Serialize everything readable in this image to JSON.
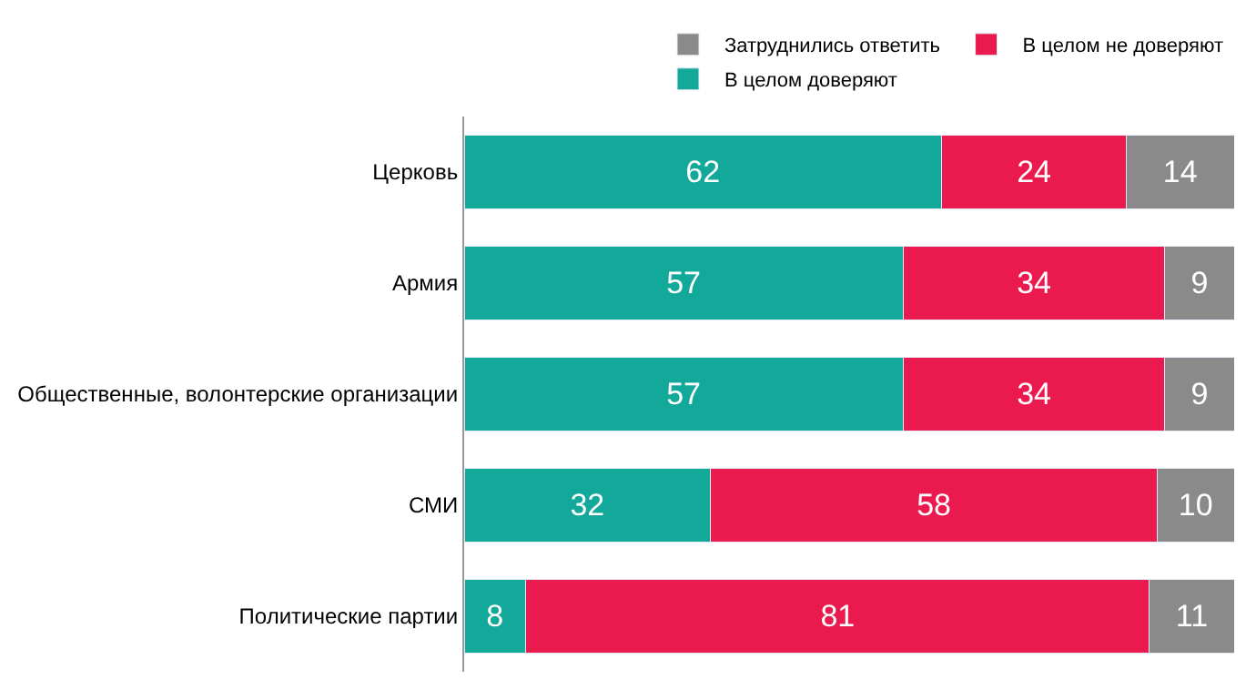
{
  "chart_data": {
    "type": "bar",
    "orientation": "horizontal",
    "stacked": true,
    "data_labels": true,
    "legend": "top right",
    "tick_labels": "y",
    "xlim": [
      0,
      100
    ],
    "categories": [
      "Церковь",
      "Армия",
      "Общественные, волонтерские организации",
      "СМИ",
      "Политические партии"
    ],
    "series": [
      {
        "name": "В целом доверяют",
        "color": "#12a89a",
        "values": [
          62,
          57,
          57,
          32,
          8
        ]
      },
      {
        "name": "В целом не доверяют",
        "color": "#ea1a4f",
        "values": [
          24,
          34,
          34,
          58,
          81
        ]
      },
      {
        "name": "Затруднились ответить",
        "color": "#8a8a8a",
        "values": [
          14,
          9,
          9,
          10,
          11
        ]
      }
    ]
  }
}
